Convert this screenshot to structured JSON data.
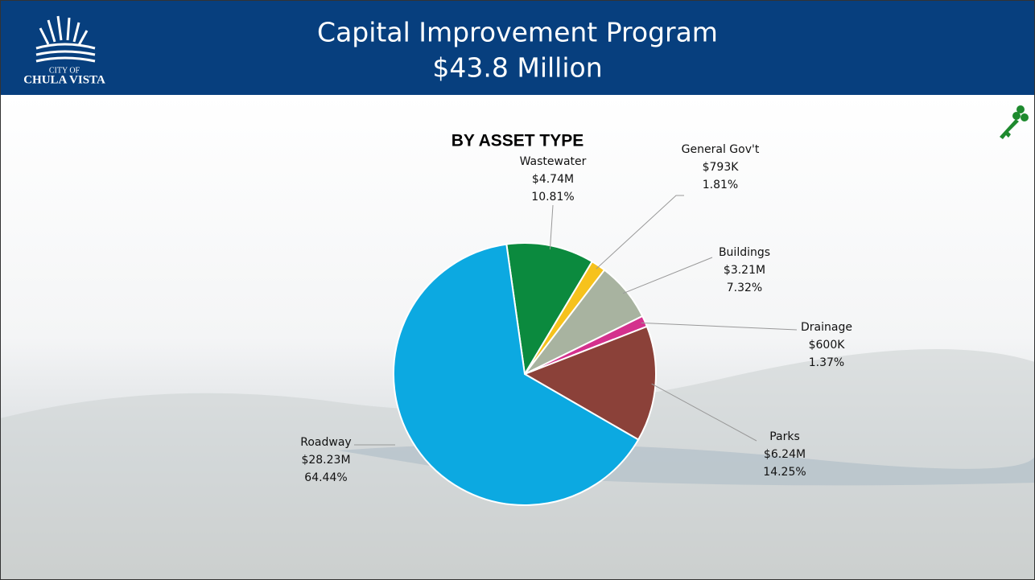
{
  "header": {
    "logo_top": "CITY OF",
    "logo_bottom": "CHULA VISTA",
    "title": "Capital Improvement Program",
    "subtitle": "$43.8 Million"
  },
  "chart_data": {
    "type": "pie",
    "title": "BY ASSET TYPE",
    "categories": [
      "Wastewater",
      "General Gov't",
      "Buildings",
      "Drainage",
      "Parks",
      "Roadway"
    ],
    "amount_labels": [
      "$4.74M",
      "$793K",
      "$3.21M",
      "$600K",
      "$6.24M",
      "$28.23M"
    ],
    "values": [
      10.81,
      1.81,
      7.32,
      1.37,
      14.25,
      64.44
    ],
    "value_labels": [
      "10.81%",
      "1.81%",
      "7.32%",
      "1.37%",
      "14.25%",
      "64.44%"
    ],
    "colors": [
      "#0b8a3e",
      "#f6c21c",
      "#a8b3a0",
      "#d4318d",
      "#8b4139",
      "#0ca9e1"
    ]
  }
}
